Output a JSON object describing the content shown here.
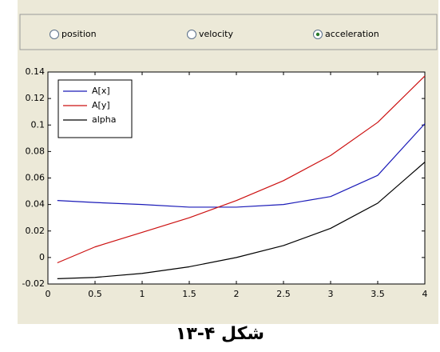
{
  "radio_buttons": [
    {
      "label": "position",
      "selected": false
    },
    {
      "label": "velocity",
      "selected": false
    },
    {
      "label": "acceleration",
      "selected": true
    }
  ],
  "chart_data": {
    "type": "line",
    "x": [
      0.1,
      0.5,
      1,
      1.5,
      2,
      2.5,
      3,
      3.5,
      4
    ],
    "series": [
      {
        "name": "A[x]",
        "color": "#1a1ab8",
        "values": [
          0.043,
          0.0415,
          0.04,
          0.038,
          0.038,
          0.04,
          0.046,
          0.062,
          0.101
        ]
      },
      {
        "name": "A[y]",
        "color": "#cc1010",
        "values": [
          -0.004,
          0.008,
          0.019,
          0.03,
          0.043,
          0.058,
          0.077,
          0.102,
          0.137
        ]
      },
      {
        "name": "alpha",
        "color": "#000000",
        "values": [
          -0.016,
          -0.015,
          -0.012,
          -0.007,
          0.0,
          0.009,
          0.022,
          0.041,
          0.072
        ]
      }
    ],
    "xlim": [
      0,
      4
    ],
    "xticks": [
      0,
      0.5,
      1,
      1.5,
      2,
      2.5,
      3,
      3.5,
      4
    ],
    "ylim": [
      -0.02,
      0.14
    ],
    "yticks": [
      -0.02,
      0,
      0.02,
      0.04,
      0.06,
      0.08,
      0.1,
      0.12,
      0.14
    ],
    "legend": "upper left"
  },
  "caption": "شکل ۴-۱۳"
}
